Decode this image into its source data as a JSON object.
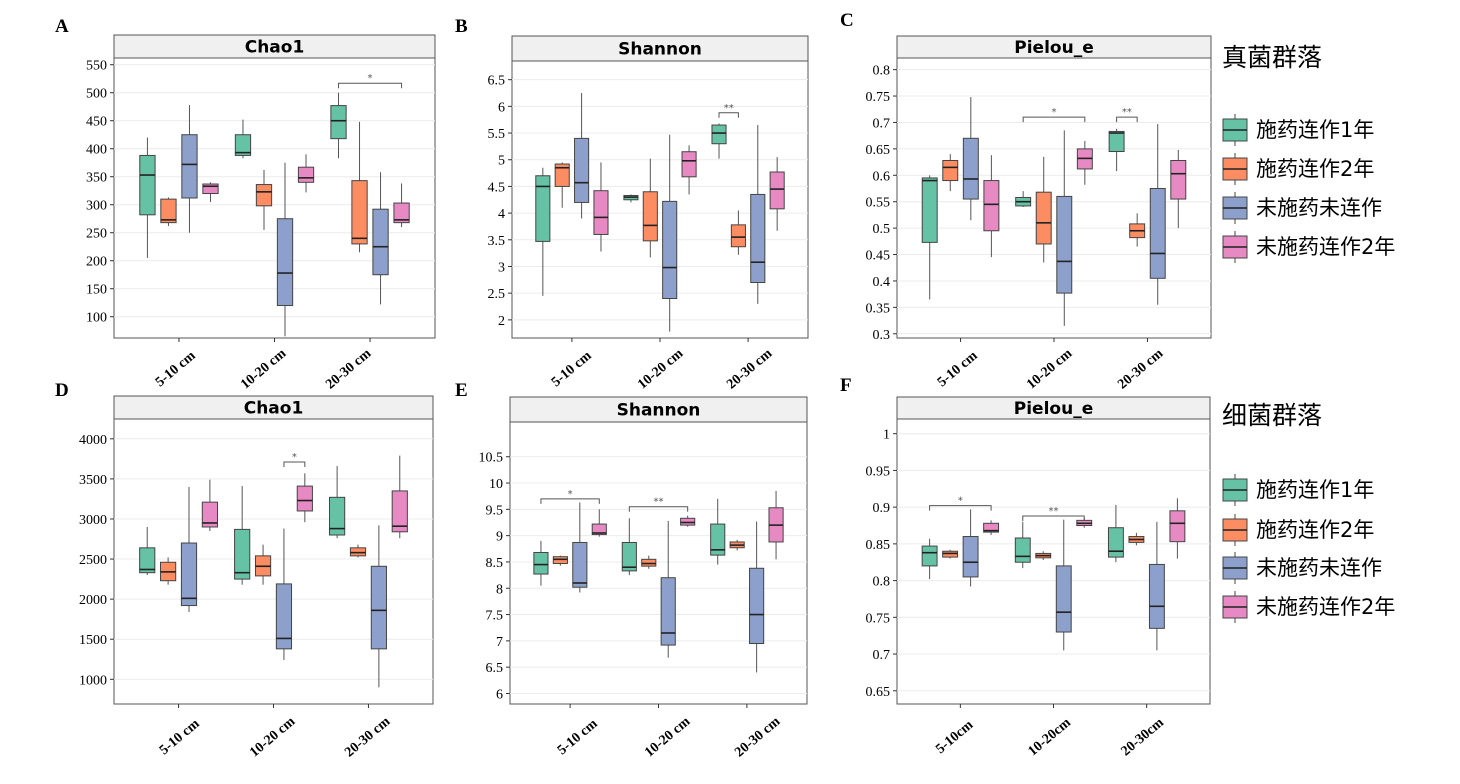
{
  "colors": {
    "施药连作1年": "#66c2a5",
    "施药连作2年": "#fc8d62",
    "未施药未连作": "#8da0cb",
    "未施药连作2年": "#e78ac3"
  },
  "legends": [
    {
      "title": "真菌群落",
      "entries": [
        "施药连作1年",
        "施药连作2年",
        "未施药未连作",
        "未施药连作2年"
      ]
    },
    {
      "title": "细菌群落",
      "entries": [
        "施药连作1年",
        "施药连作2年",
        "未施药未连作",
        "未施药连作2年"
      ]
    }
  ],
  "chart_data": [
    {
      "panel": "A",
      "type": "box",
      "title": "Chao1",
      "categories": [
        "5-10 cm",
        "10-20 cm",
        "20-30 cm"
      ],
      "series_order": [
        "施药连作1年",
        "施药连作2年",
        "未施药未连作",
        "未施药连作2年"
      ],
      "ylim": [
        62,
        562
      ],
      "yticks": [
        {
          "v": 100,
          "t": "100"
        },
        {
          "v": 150,
          "t": "150"
        },
        {
          "v": 200,
          "t": "200"
        },
        {
          "v": 250,
          "t": "250"
        },
        {
          "v": 300,
          "t": "300"
        },
        {
          "v": 350,
          "t": "350"
        },
        {
          "v": 400,
          "t": "400"
        },
        {
          "v": 450,
          "t": "450"
        },
        {
          "v": 500,
          "t": "500"
        },
        {
          "v": 550,
          "t": "550"
        }
      ],
      "boxes": [
        [
          [
            205,
            282,
            353,
            388,
            420
          ],
          [
            262,
            268,
            273,
            310,
            313
          ],
          [
            250,
            312,
            372,
            425,
            478
          ],
          [
            305,
            320,
            333,
            337,
            340
          ]
        ],
        [
          [
            383,
            388,
            393,
            425,
            452
          ],
          [
            255,
            298,
            323,
            336,
            362
          ],
          [
            65,
            120,
            178,
            275,
            375
          ],
          [
            322,
            340,
            348,
            367,
            390
          ]
        ],
        [
          [
            383,
            418,
            450,
            477,
            500
          ],
          [
            215,
            230,
            240,
            343,
            448
          ],
          [
            122,
            175,
            225,
            292,
            358
          ],
          [
            260,
            268,
            273,
            303,
            338
          ]
        ]
      ],
      "sig": [
        {
          "cat": 2,
          "from": 0,
          "to": 3,
          "label": "*",
          "y": 517
        }
      ]
    },
    {
      "panel": "B",
      "type": "box",
      "title": "Shannon",
      "categories": [
        "5-10 cm",
        "10-20 cm",
        "20-30 cm"
      ],
      "series_order": [
        "施药连作1年",
        "施药连作2年",
        "未施药未连作",
        "未施药连作2年"
      ],
      "ylim": [
        1.66,
        6.85
      ],
      "yticks": [
        {
          "v": 2,
          "t": "2"
        },
        {
          "v": 2.5,
          "t": "2.5"
        },
        {
          "v": 3,
          "t": "3"
        },
        {
          "v": 3.5,
          "t": "3.5"
        },
        {
          "v": 4,
          "t": "4"
        },
        {
          "v": 4.5,
          "t": "4.5"
        },
        {
          "v": 5,
          "t": "5"
        },
        {
          "v": 5.5,
          "t": "5.5"
        },
        {
          "v": 6,
          "t": "6"
        },
        {
          "v": 6.5,
          "t": "6.5"
        }
      ],
      "boxes": [
        [
          [
            2.45,
            3.47,
            4.5,
            4.7,
            4.85
          ],
          [
            4.1,
            4.5,
            4.85,
            4.92,
            4.95
          ],
          [
            3.9,
            4.2,
            4.57,
            5.4,
            6.25
          ],
          [
            3.28,
            3.6,
            3.92,
            4.42,
            4.95
          ]
        ],
        [
          [
            4.2,
            4.25,
            4.3,
            4.33,
            4.35
          ],
          [
            3.17,
            3.48,
            3.77,
            4.4,
            5.02
          ],
          [
            1.78,
            2.4,
            2.98,
            4.22,
            5.47
          ],
          [
            4.35,
            4.68,
            4.98,
            5.15,
            5.27
          ]
        ],
        [
          [
            5.02,
            5.3,
            5.5,
            5.65,
            5.68
          ],
          [
            3.22,
            3.37,
            3.55,
            3.78,
            4.05
          ],
          [
            2.3,
            2.7,
            3.08,
            4.35,
            5.65
          ],
          [
            3.67,
            4.08,
            4.45,
            4.77,
            5.05
          ]
        ]
      ],
      "sig": [
        {
          "cat": 2,
          "from": 0,
          "to": 1,
          "label": "**",
          "y": 5.88
        }
      ]
    },
    {
      "panel": "C",
      "type": "box",
      "title": "Pielou_e",
      "categories": [
        "5-10 cm",
        "10-20 cm",
        "20-30 cm"
      ],
      "series_order": [
        "施药连作1年",
        "施药连作2年",
        "未施药未连作",
        "未施药连作2年"
      ],
      "ylim": [
        0.292,
        0.822
      ],
      "yticks": [
        {
          "v": 0.3,
          "t": "0.3"
        },
        {
          "v": 0.35,
          "t": "0.35"
        },
        {
          "v": 0.4,
          "t": "0.4"
        },
        {
          "v": 0.45,
          "t": "0.45"
        },
        {
          "v": 0.5,
          "t": "0.5"
        },
        {
          "v": 0.55,
          "t": "0.55"
        },
        {
          "v": 0.6,
          "t": "0.6"
        },
        {
          "v": 0.65,
          "t": "0.65"
        },
        {
          "v": 0.7,
          "t": "0.7"
        },
        {
          "v": 0.75,
          "t": "0.75"
        },
        {
          "v": 0.8,
          "t": "0.8"
        }
      ],
      "boxes": [
        [
          [
            0.365,
            0.473,
            0.59,
            0.595,
            0.6
          ],
          [
            0.57,
            0.59,
            0.615,
            0.628,
            0.64
          ],
          [
            0.515,
            0.555,
            0.593,
            0.67,
            0.748
          ],
          [
            0.445,
            0.495,
            0.545,
            0.59,
            0.638
          ]
        ],
        [
          [
            0.54,
            0.542,
            0.55,
            0.558,
            0.57
          ],
          [
            0.435,
            0.47,
            0.51,
            0.568,
            0.635
          ],
          [
            0.315,
            0.377,
            0.437,
            0.56,
            0.685
          ],
          [
            0.582,
            0.612,
            0.632,
            0.65,
            0.665
          ]
        ],
        [
          [
            0.608,
            0.645,
            0.68,
            0.683,
            0.688
          ],
          [
            0.465,
            0.482,
            0.495,
            0.508,
            0.528
          ],
          [
            0.355,
            0.405,
            0.452,
            0.575,
            0.697
          ],
          [
            0.5,
            0.555,
            0.603,
            0.628,
            0.648
          ]
        ]
      ],
      "sig": [
        {
          "cat": 1,
          "from": 0,
          "to": 3,
          "label": "*",
          "y": 0.71
        },
        {
          "cat": 2,
          "from": 0,
          "to": 1,
          "label": "**",
          "y": 0.71
        }
      ]
    },
    {
      "panel": "D",
      "type": "box",
      "title": "Chao1",
      "categories": [
        "5-10 cm",
        "10-20 cm",
        "20-30 cm"
      ],
      "series_order": [
        "施药连作1年",
        "施药连作2年",
        "未施药未连作",
        "未施药连作2年"
      ],
      "ylim": [
        692,
        4247
      ],
      "yticks": [
        {
          "v": 1000,
          "t": "1000"
        },
        {
          "v": 1500,
          "t": "1500"
        },
        {
          "v": 2000,
          "t": "2000"
        },
        {
          "v": 2500,
          "t": "2500"
        },
        {
          "v": 3000,
          "t": "3000"
        },
        {
          "v": 3500,
          "t": "3500"
        },
        {
          "v": 4000,
          "t": "4000"
        }
      ],
      "boxes": [
        [
          [
            2300,
            2330,
            2370,
            2640,
            2900
          ],
          [
            2180,
            2230,
            2340,
            2460,
            2520
          ],
          [
            1840,
            1920,
            2010,
            2700,
            3400
          ],
          [
            2850,
            2900,
            2950,
            3210,
            3490
          ]
        ],
        [
          [
            2180,
            2250,
            2330,
            2870,
            3410
          ],
          [
            2180,
            2290,
            2410,
            2540,
            2680
          ],
          [
            1240,
            1380,
            1510,
            2190,
            2880
          ],
          [
            2960,
            3100,
            3230,
            3410,
            3570
          ]
        ],
        [
          [
            2760,
            2800,
            2880,
            3270,
            3660
          ],
          [
            2520,
            2540,
            2580,
            2640,
            2680
          ],
          [
            900,
            1380,
            1860,
            2410,
            2920
          ],
          [
            2760,
            2840,
            2910,
            3350,
            3790
          ]
        ]
      ],
      "sig": [
        {
          "cat": 1,
          "from": 2,
          "to": 3,
          "label": "*",
          "y": 3710
        }
      ]
    },
    {
      "panel": "E",
      "type": "box",
      "title": "Shannon",
      "categories": [
        "5-10 cm",
        "10-20 cm",
        "20-30 cm"
      ],
      "series_order": [
        "施药连作1年",
        "施药连作2年",
        "未施药未连作",
        "未施药连作2年"
      ],
      "ylim": [
        5.8,
        11.16
      ],
      "yticks": [
        {
          "v": 6,
          "t": "6"
        },
        {
          "v": 6.5,
          "t": "6.5"
        },
        {
          "v": 7,
          "t": "7"
        },
        {
          "v": 7.5,
          "t": "7.5"
        },
        {
          "v": 8,
          "t": "8"
        },
        {
          "v": 8.5,
          "t": "8.5"
        },
        {
          "v": 9,
          "t": "9"
        },
        {
          "v": 9.5,
          "t": "9.5"
        },
        {
          "v": 10,
          "t": "10"
        },
        {
          "v": 10.5,
          "t": "10.5"
        }
      ],
      "boxes": [
        [
          [
            8.05,
            8.27,
            8.45,
            8.68,
            8.9
          ],
          [
            8.43,
            8.47,
            8.55,
            8.6,
            8.62
          ],
          [
            7.92,
            8.02,
            8.1,
            8.87,
            9.63
          ],
          [
            8.98,
            9.02,
            9.05,
            9.22,
            9.5
          ]
        ],
        [
          [
            8.25,
            8.33,
            8.4,
            8.87,
            9.33
          ],
          [
            8.37,
            8.42,
            8.47,
            8.55,
            8.62
          ],
          [
            6.68,
            6.92,
            7.15,
            8.2,
            9.28
          ],
          [
            9.17,
            9.2,
            9.25,
            9.33,
            9.38
          ]
        ],
        [
          [
            8.45,
            8.63,
            8.73,
            9.22,
            9.7
          ],
          [
            8.72,
            8.77,
            8.82,
            8.88,
            8.92
          ],
          [
            6.4,
            6.95,
            7.5,
            8.38,
            9.27
          ],
          [
            8.55,
            8.88,
            9.2,
            9.53,
            9.85
          ]
        ]
      ],
      "sig": [
        {
          "cat": 0,
          "from": 0,
          "to": 3,
          "label": "*",
          "y": 9.7
        },
        {
          "cat": 1,
          "from": 0,
          "to": 3,
          "label": "**",
          "y": 9.55
        }
      ]
    },
    {
      "panel": "F",
      "type": "box",
      "title": "Pielou_e",
      "categories": [
        "5-10cm",
        "10-20cm",
        "20-30cm"
      ],
      "series_order": [
        "施药连作1年",
        "施药连作2年",
        "未施药未连作",
        "未施药连作2年"
      ],
      "ylim": [
        0.632,
        1.02
      ],
      "yticks": [
        {
          "v": 0.65,
          "t": "0.65"
        },
        {
          "v": 0.7,
          "t": "0.7"
        },
        {
          "v": 0.75,
          "t": "0.75"
        },
        {
          "v": 0.8,
          "t": "0.8"
        },
        {
          "v": 0.85,
          "t": "0.85"
        },
        {
          "v": 0.9,
          "t": "0.9"
        },
        {
          "v": 0.95,
          "t": "0.95"
        },
        {
          "v": 1,
          "t": "1"
        }
      ],
      "boxes": [
        [
          [
            0.802,
            0.82,
            0.838,
            0.847,
            0.857
          ],
          [
            0.83,
            0.832,
            0.837,
            0.84,
            0.842
          ],
          [
            0.792,
            0.805,
            0.825,
            0.86,
            0.897
          ],
          [
            0.862,
            0.866,
            0.868,
            0.878,
            0.882
          ]
        ],
        [
          [
            0.817,
            0.825,
            0.833,
            0.858,
            0.88
          ],
          [
            0.828,
            0.831,
            0.834,
            0.837,
            0.84
          ],
          [
            0.705,
            0.73,
            0.757,
            0.82,
            0.883
          ],
          [
            0.872,
            0.875,
            0.878,
            0.882,
            0.885
          ]
        ],
        [
          [
            0.825,
            0.832,
            0.84,
            0.872,
            0.903
          ],
          [
            0.848,
            0.852,
            0.856,
            0.86,
            0.865
          ],
          [
            0.705,
            0.735,
            0.765,
            0.822,
            0.88
          ],
          [
            0.83,
            0.853,
            0.878,
            0.895,
            0.912
          ]
        ]
      ],
      "sig": [
        {
          "cat": 0,
          "from": 0,
          "to": 3,
          "label": "*",
          "y": 0.902
        },
        {
          "cat": 1,
          "from": 0,
          "to": 3,
          "label": "**",
          "y": 0.888
        }
      ]
    }
  ]
}
